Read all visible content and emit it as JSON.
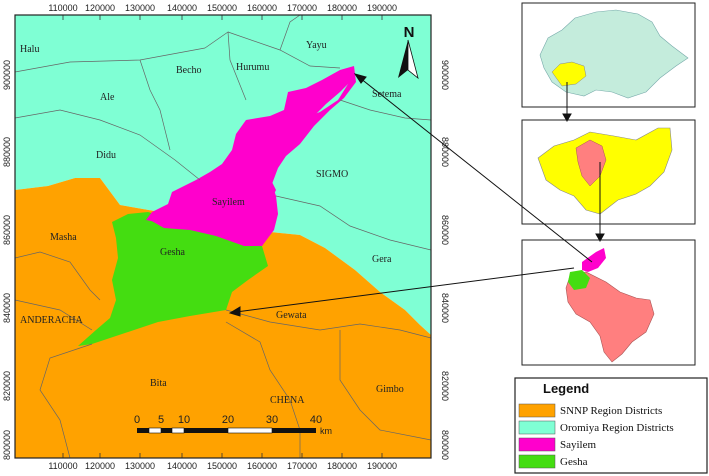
{
  "colors": {
    "snnp": "#ffa200",
    "oromiya": "#7fffd4",
    "sayilem": "#ff00cc",
    "gesha": "#44dd11",
    "inset_country": "#c4ecdc",
    "inset_region": "#ffff00",
    "inset_zone": "#ff7f7f"
  },
  "axes": {
    "x_ticks": [
      "110000",
      "120000",
      "130000",
      "140000",
      "150000",
      "160000",
      "170000",
      "180000",
      "190000"
    ],
    "y_ticks": [
      "900000",
      "880000",
      "860000",
      "840000",
      "820000",
      "800000"
    ]
  },
  "districts": {
    "halu": "Halu",
    "yayu": "Yayu",
    "hurumu": "Hurumu",
    "becho": "Becho",
    "ale": "Ale",
    "setema": "Setema",
    "didu": "Didu",
    "sigmo": "SIGMO",
    "sayilem": "Sayilem",
    "masha": "Masha",
    "gesha": "Gesha",
    "gera": "Gera",
    "anderacha": "ANDERACHA",
    "gewata": "Gewata",
    "bita": "Bita",
    "chena": "CHENA",
    "gimbo": "Gimbo"
  },
  "north_label": "N",
  "scale_bar": {
    "ticks": [
      "0",
      "5",
      "10",
      "20",
      "30",
      "40"
    ],
    "unit": "km"
  },
  "legend": {
    "title": "Legend",
    "items": [
      {
        "label": "SNNP Region Districts",
        "color": "#ffa200"
      },
      {
        "label": "Oromiya Region Districts",
        "color": "#7fffd4"
      },
      {
        "label": "Sayilem",
        "color": "#ff00cc"
      },
      {
        "label": "Gesha",
        "color": "#44dd11"
      }
    ]
  }
}
